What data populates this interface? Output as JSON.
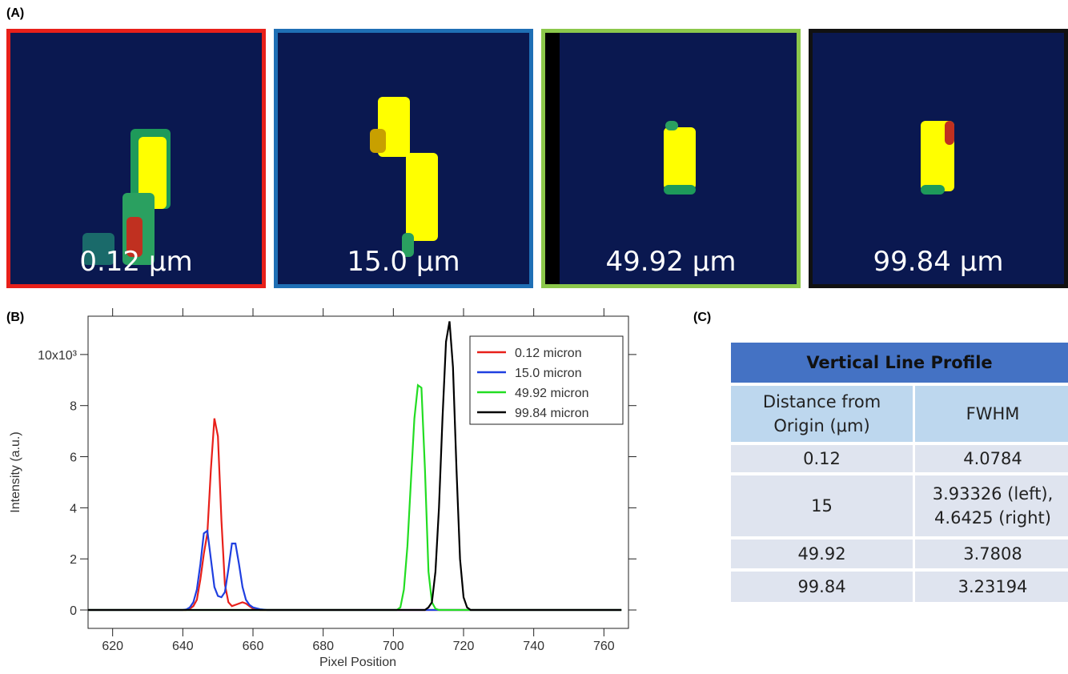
{
  "panels": {
    "a": "(A)",
    "b": "(B)",
    "c": "(C)"
  },
  "images": [
    {
      "caption": "0.12 μm",
      "border": "#e8201a"
    },
    {
      "caption": "15.0 μm",
      "border": "#1f6fb5"
    },
    {
      "caption": "49.92 μm",
      "border": "#8cc84b"
    },
    {
      "caption": "99.84 μm",
      "border": "#111111"
    }
  ],
  "chart_data": {
    "type": "line",
    "x_label": "Pixel Position",
    "y_label": "Intensity (a.u.)",
    "x": [
      613,
      630,
      640,
      641,
      642,
      643,
      644,
      645,
      646,
      647,
      648,
      649,
      650,
      651,
      652,
      653,
      654,
      655,
      656,
      657,
      658,
      659,
      660,
      662,
      664,
      666,
      680,
      700,
      701,
      702,
      703,
      704,
      705,
      706,
      707,
      708,
      709,
      710,
      711,
      712,
      713,
      714,
      715,
      716,
      717,
      718,
      719,
      720,
      721,
      722,
      730,
      765
    ],
    "series": [
      {
        "name": "0.12 micron",
        "color": "#e8201a",
        "values": [
          0,
          0,
          0,
          0,
          50,
          150,
          400,
          1200,
          2200,
          3000,
          5500,
          7500,
          6800,
          3500,
          1000,
          300,
          150,
          200,
          250,
          300,
          250,
          150,
          50,
          0,
          0,
          0,
          0,
          0,
          0,
          0,
          0,
          0,
          0,
          0,
          0,
          0,
          0,
          0,
          0,
          0,
          0,
          0,
          0,
          0,
          0,
          0,
          0,
          0,
          0,
          0,
          0,
          0
        ]
      },
      {
        "name": "15.0 micron",
        "color": "#1f3fe0",
        "values": [
          0,
          0,
          0,
          20,
          100,
          300,
          800,
          1800,
          3000,
          3100,
          2000,
          900,
          550,
          500,
          700,
          1600,
          2600,
          2600,
          1800,
          900,
          400,
          200,
          100,
          30,
          0,
          0,
          0,
          0,
          0,
          0,
          0,
          0,
          0,
          0,
          0,
          0,
          0,
          0,
          0,
          0,
          0,
          0,
          0,
          0,
          0,
          0,
          0,
          0,
          0,
          0,
          0,
          0
        ]
      },
      {
        "name": "49.92 micron",
        "color": "#22dd22",
        "values": [
          0,
          0,
          0,
          0,
          0,
          0,
          0,
          0,
          0,
          0,
          0,
          0,
          0,
          0,
          0,
          0,
          0,
          0,
          0,
          0,
          0,
          0,
          0,
          0,
          0,
          0,
          0,
          0,
          0,
          100,
          800,
          2500,
          5000,
          7500,
          8800,
          8700,
          5500,
          1500,
          300,
          50,
          0,
          0,
          0,
          0,
          0,
          0,
          0,
          0,
          0,
          0,
          0,
          0
        ]
      },
      {
        "name": "99.84 micron",
        "color": "#000000",
        "values": [
          0,
          0,
          0,
          0,
          0,
          0,
          0,
          0,
          0,
          0,
          0,
          0,
          0,
          0,
          0,
          0,
          0,
          0,
          0,
          0,
          0,
          0,
          0,
          0,
          0,
          0,
          0,
          0,
          0,
          0,
          0,
          0,
          0,
          0,
          0,
          0,
          0,
          100,
          300,
          1500,
          4000,
          7500,
          10500,
          11300,
          9500,
          5500,
          2000,
          500,
          100,
          0,
          0,
          0
        ]
      }
    ],
    "xlim": [
      613,
      767
    ],
    "ylim": [
      -720,
      11500
    ],
    "xticks": [
      620,
      640,
      660,
      680,
      700,
      720,
      740,
      760
    ],
    "yticks": [
      0,
      {
        "value": 2000,
        "label": "2"
      },
      {
        "value": 4000,
        "label": "4"
      },
      {
        "value": 6000,
        "label": "6"
      },
      {
        "value": 8000,
        "label": "8"
      },
      {
        "value": 10000,
        "label": "10x10³"
      }
    ],
    "legend": "upper right"
  },
  "table": {
    "title": "Vertical Line Profile",
    "headers": [
      "Distance from Origin (μm)",
      "FWHM"
    ],
    "rows": [
      [
        "0.12",
        [
          "4.0784"
        ]
      ],
      [
        "15",
        [
          "3.93326 (left),",
          "4.6425 (right)"
        ]
      ],
      [
        "49.92",
        [
          "3.7808"
        ]
      ],
      [
        "99.84",
        [
          "3.23194"
        ]
      ]
    ]
  }
}
